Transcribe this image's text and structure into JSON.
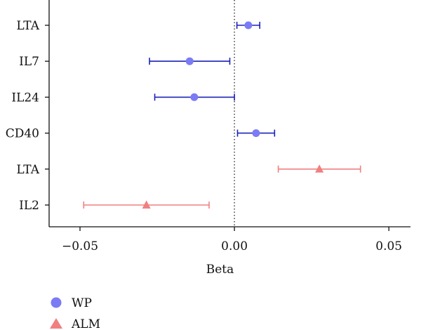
{
  "chart_data": {
    "type": "scatter",
    "subtype": "forest-plot",
    "title": "",
    "xlabel": "Beta",
    "ylabel": "",
    "xlim": [
      -0.06,
      0.057
    ],
    "xticks": [
      -0.05,
      0.0,
      0.05
    ],
    "xtick_labels": [
      "−0.05",
      "0.00",
      "0.05"
    ],
    "reference_line": {
      "x": 0,
      "style": "dotted"
    },
    "grid": false,
    "legend_position": "bottom-left",
    "series": [
      {
        "name": "WP",
        "marker": "circle",
        "color": "#7B7BF5",
        "errorbar_color": "#1A22B8"
      },
      {
        "name": "ALM",
        "marker": "triangle",
        "color": "#F08080",
        "errorbar_color": "#F08080"
      }
    ],
    "rows": [
      {
        "label": "LTA",
        "series": "WP",
        "beta": 0.0045,
        "ci_low": 0.0008,
        "ci_high": 0.0082
      },
      {
        "label": "IL7",
        "series": "WP",
        "beta": -0.0145,
        "ci_low": -0.0275,
        "ci_high": -0.0015
      },
      {
        "label": "IL24",
        "series": "WP",
        "beta": -0.013,
        "ci_low": -0.0258,
        "ci_high": 0.0
      },
      {
        "label": "CD40",
        "series": "WP",
        "beta": 0.007,
        "ci_low": 0.001,
        "ci_high": 0.013
      },
      {
        "label": "LTA",
        "series": "ALM",
        "beta": 0.0275,
        "ci_low": 0.0142,
        "ci_high": 0.0408
      },
      {
        "label": "IL2",
        "series": "ALM",
        "beta": -0.0285,
        "ci_low": -0.0488,
        "ci_high": -0.0082
      }
    ]
  }
}
